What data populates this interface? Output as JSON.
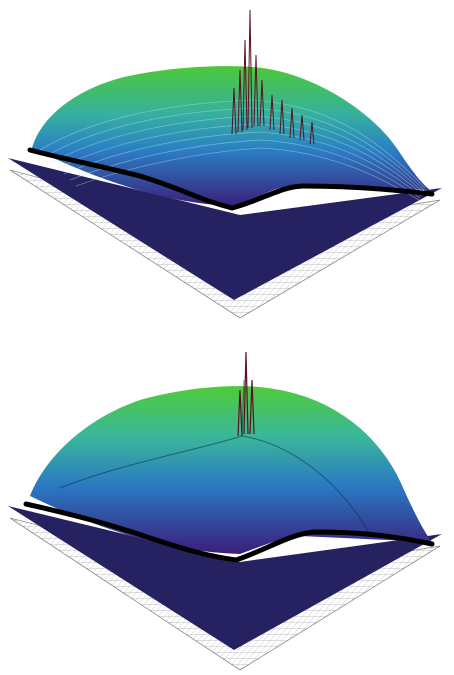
{
  "figure": {
    "panels": [
      {
        "id": "top",
        "surface_style": "ridged-with-spikes"
      },
      {
        "id": "bottom",
        "surface_style": "smooth-with-single-spike"
      }
    ],
    "colors": {
      "background": "#ffffff",
      "base_plane": "#262262",
      "grid_lines": "#8c8c8c",
      "surface_low": "#3a1f7a",
      "surface_mid": "#2aa7c9",
      "surface_high": "#47c73a",
      "boundary_curve": "#000000",
      "spike": "#5a1020"
    }
  }
}
